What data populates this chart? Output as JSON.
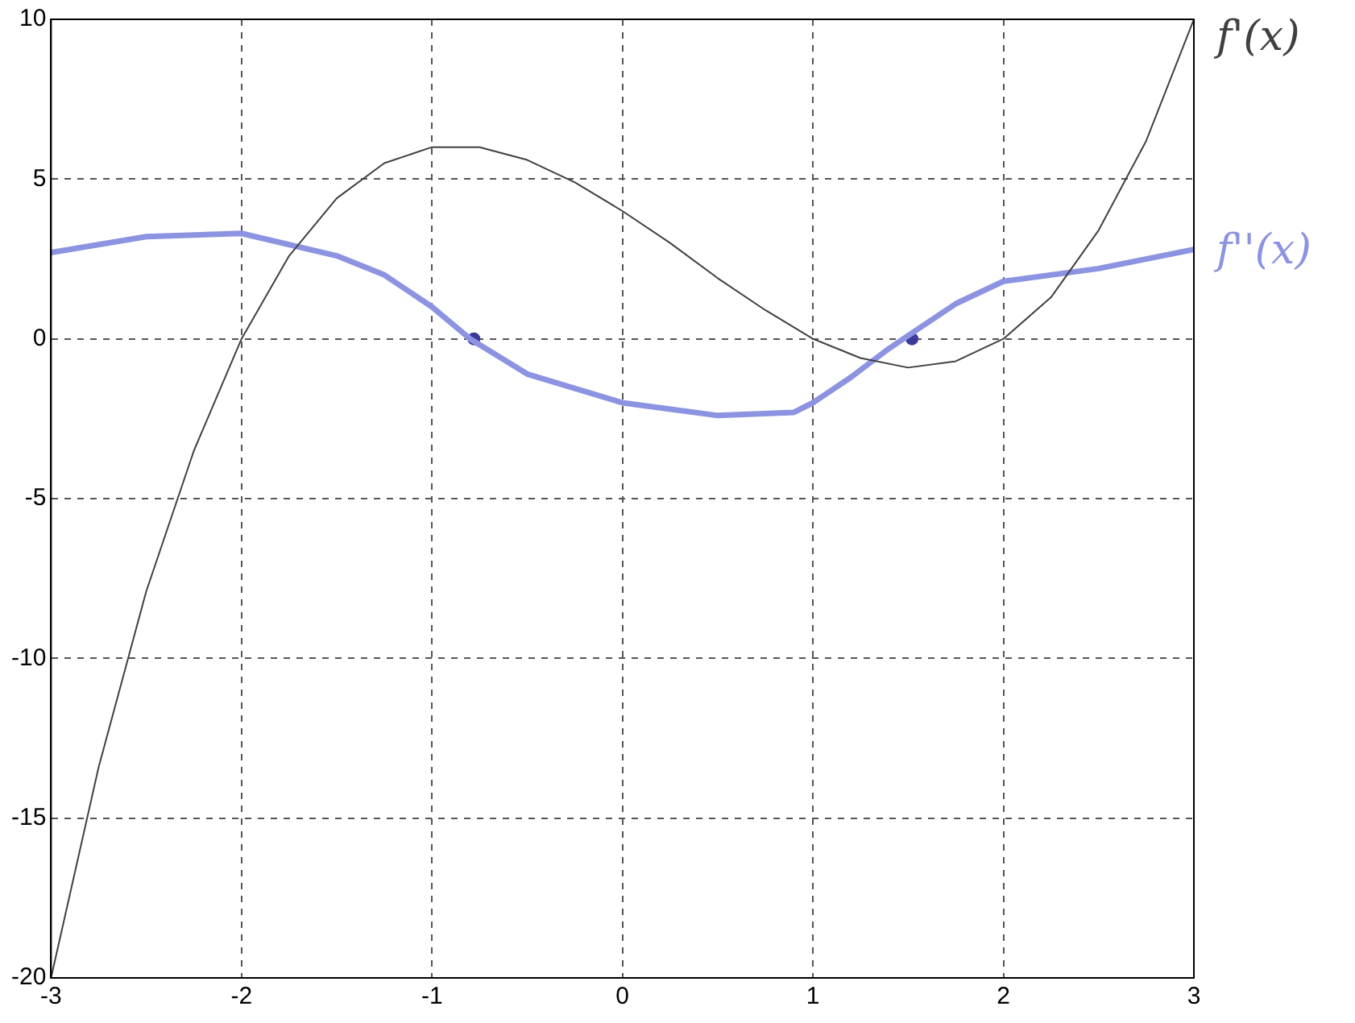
{
  "chart_data": {
    "type": "line",
    "xlim": [
      -3,
      3
    ],
    "ylim": [
      -20,
      10
    ],
    "xticks": [
      -3,
      -2,
      -1,
      0,
      1,
      2,
      3
    ],
    "yticks": [
      -20,
      -15,
      -10,
      -5,
      0,
      5,
      10
    ],
    "grid": true,
    "legend": false,
    "marker": "none",
    "series": [
      {
        "name": "f'(x)",
        "color": "#404040",
        "x": [
          -3,
          -2.75,
          -2.5,
          -2.25,
          -2,
          -1.75,
          -1.5,
          -1.25,
          -1,
          -0.75,
          -0.5,
          -0.25,
          0,
          0.25,
          0.5,
          0.75,
          1,
          1.25,
          1.5,
          1.75,
          2,
          2.25,
          2.5,
          2.75,
          3
        ],
        "values": [
          -20,
          -13.4,
          -7.9,
          -3.5,
          0,
          2.6,
          4.4,
          5.5,
          6,
          6,
          5.6,
          4.9,
          4,
          3,
          1.9,
          0.9,
          0,
          -0.6,
          -0.9,
          -0.7,
          0,
          1.3,
          3.4,
          6.2,
          10
        ]
      },
      {
        "name": "f''(x)",
        "color": "#8c93e0",
        "x": [
          -3,
          -2.5,
          -2,
          -1.5,
          -1.25,
          -1,
          -0.8,
          -0.5,
          0,
          0.5,
          0.9,
          1,
          1.2,
          1.4,
          1.5,
          1.75,
          2,
          2.5,
          3
        ],
        "values": [
          2.7,
          3.2,
          3.3,
          2.6,
          2,
          1,
          0,
          -1.1,
          -2,
          -2.4,
          -2.3,
          -2,
          -1.2,
          -0.3,
          0.1,
          1.1,
          1.8,
          2.2,
          2.8
        ]
      },
      {
        "type": "scatter",
        "marker": "circle",
        "color": "#3a3a9a",
        "x": [
          -0.78,
          1.52
        ],
        "values": [
          0,
          0
        ]
      }
    ]
  }
}
